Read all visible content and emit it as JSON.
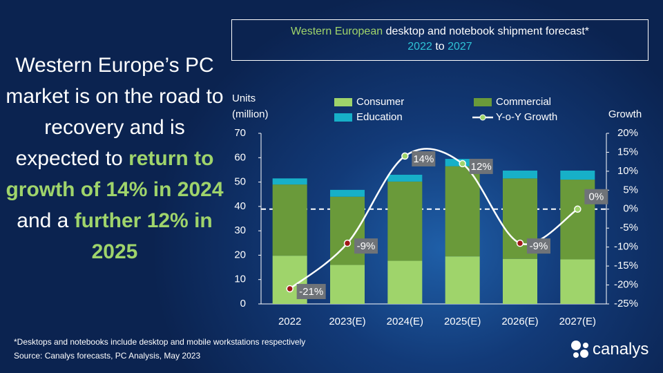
{
  "headline": [
    {
      "text": "Western Europe’s PC market is on the road to recovery and is expected to ",
      "highlight": false
    },
    {
      "text": "return to growth of 14% in 2024",
      "highlight": true
    },
    {
      "text": " and a ",
      "highlight": false
    },
    {
      "text": "further 12% in 2025",
      "highlight": true
    }
  ],
  "chart_data": {
    "type": "bar",
    "title_segments": [
      "Western European",
      " desktop and notebook shipment forecast*",
      "2022",
      " to ",
      "2027"
    ],
    "categories": [
      "2022",
      "2023(E)",
      "2024(E)",
      "2025(E)",
      "2026(E)",
      "2027(E)"
    ],
    "series": [
      {
        "name": "Consumer",
        "color": "#9fd46b",
        "values": [
          19.8,
          16,
          17.7,
          19.5,
          18.5,
          18.3
        ]
      },
      {
        "name": "Commercial",
        "color": "#6a9a3a",
        "values": [
          29.2,
          28,
          32.5,
          37,
          33,
          32.7
        ]
      },
      {
        "name": "Education",
        "color": "#17b0c8",
        "values": [
          2.5,
          2.8,
          2.8,
          3,
          3.2,
          3.7
        ]
      },
      {
        "name": "Y-o-Y Growth",
        "type": "line",
        "axis": "y2",
        "color": "#ffffff",
        "marker_colors": [
          "#a01818",
          "#a01818",
          "#9fd46b",
          "#9fd46b",
          "#a01818",
          "#9fd46b"
        ],
        "values": [
          -21,
          -9,
          14,
          12,
          -9,
          0
        ],
        "value_labels": [
          "-21%",
          "-9%",
          "14%",
          "12%",
          "-9%",
          "0%"
        ]
      }
    ],
    "y_label": [
      "Units",
      "(million)"
    ],
    "y2_label": "Growth",
    "ylim": [
      0,
      70
    ],
    "yticks": [
      0,
      10,
      20,
      30,
      40,
      50,
      60,
      70
    ],
    "y2lim": [
      -25,
      20
    ],
    "y2ticks": [
      {
        "value": -25,
        "label": "-25%"
      },
      {
        "value": -20,
        "label": "-20%"
      },
      {
        "value": -15,
        "label": "-15%"
      },
      {
        "value": -10,
        "label": "-10%"
      },
      {
        "value": -5,
        "label": "-5%"
      },
      {
        "value": 0,
        "label": "0%"
      },
      {
        "value": 5,
        "label": "5%"
      },
      {
        "value": 10,
        "label": "10%"
      },
      {
        "value": 15,
        "label": "15%"
      },
      {
        "value": 20,
        "label": "20%"
      }
    ],
    "stacked": true
  },
  "footnote": "*Desktops and notebooks include desktop and mobile workstations respectively",
  "source": "Source: Canalys forecasts, PC Analysis, May 2023",
  "brand": "canalys"
}
